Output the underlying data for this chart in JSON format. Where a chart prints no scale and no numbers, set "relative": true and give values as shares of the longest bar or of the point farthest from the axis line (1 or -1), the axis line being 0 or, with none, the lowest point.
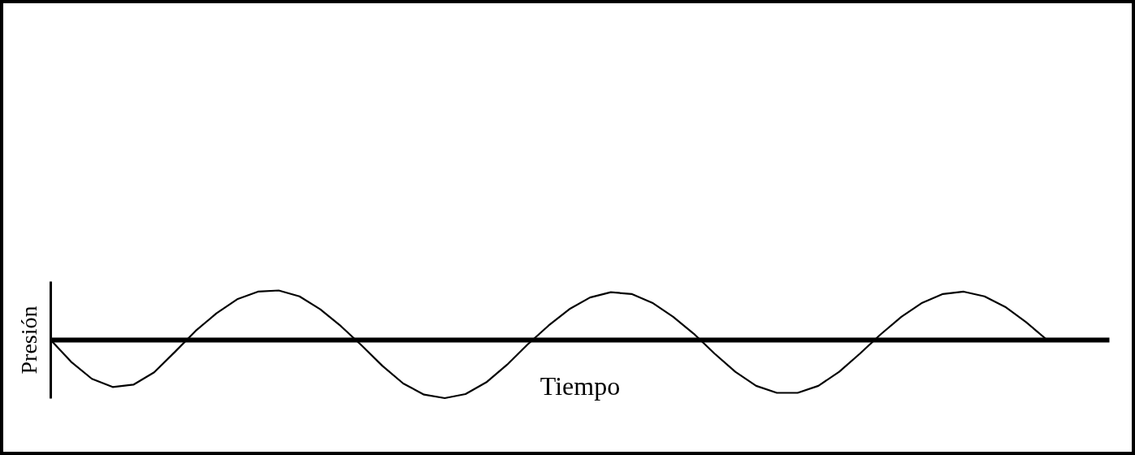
{
  "chart_data": {
    "type": "line",
    "relative": true,
    "xlabel": "Tiempo",
    "ylabel": "Presión",
    "categories": [
      null,
      null,
      null,
      null,
      null,
      null,
      null,
      null,
      null,
      null,
      null,
      null,
      null,
      null,
      null,
      null,
      null,
      null,
      null,
      null,
      null,
      null,
      null,
      null,
      null,
      null,
      null,
      null,
      null,
      null,
      null,
      null,
      null,
      null,
      null,
      null,
      null,
      null,
      null,
      null,
      null,
      null,
      null,
      null,
      null,
      null,
      null,
      null,
      null,
      null,
      null,
      null
    ],
    "series": [
      {
        "color": "#000000",
        "values": [
          0,
          -0.38,
          -0.67,
          -0.81,
          -0.77,
          -0.56,
          -0.21,
          0.15,
          0.45,
          0.69,
          0.82,
          0.84,
          0.74,
          0.52,
          0.23,
          -0.1,
          -0.45,
          -0.75,
          -0.94,
          -1,
          -0.93,
          -0.73,
          -0.43,
          -0.08,
          0.24,
          0.52,
          0.72,
          0.81,
          0.78,
          0.63,
          0.39,
          0.1,
          -0.24,
          -0.55,
          -0.79,
          -0.91,
          -0.91,
          -0.79,
          -0.55,
          -0.24,
          0.09,
          0.39,
          0.63,
          0.78,
          0.82,
          0.74,
          0.56,
          0.3,
          0,
          null,
          null,
          null
        ]
      }
    ],
    "grid": false,
    "marker": "none",
    "line_style": "solid"
  }
}
